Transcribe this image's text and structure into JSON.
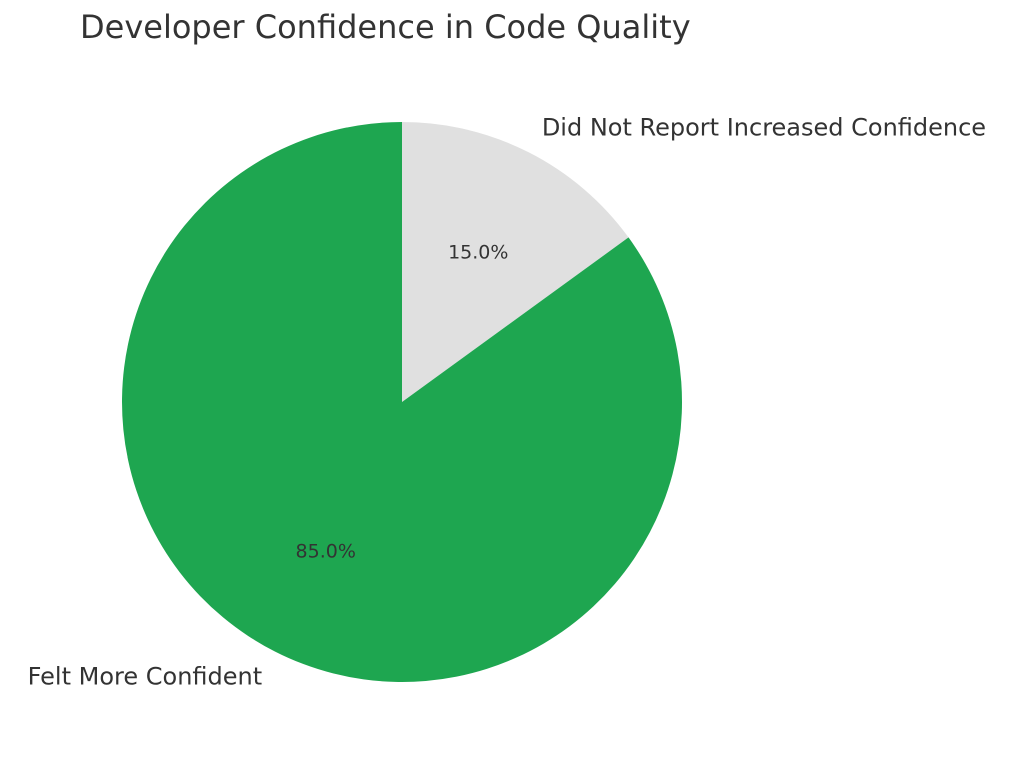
{
  "chart_data": {
    "type": "pie",
    "title": "Developer Confidence in Code Quality",
    "slices": [
      {
        "label": "Did Not Report Increased Confidence",
        "value": 15.0,
        "percent_label": "15.0%",
        "color": "#e0e0e0"
      },
      {
        "label": "Felt More Confident",
        "value": 85.0,
        "percent_label": "85.0%",
        "color": "#1ea650"
      }
    ],
    "start_angle": "12 o'clock",
    "direction": "clockwise"
  }
}
